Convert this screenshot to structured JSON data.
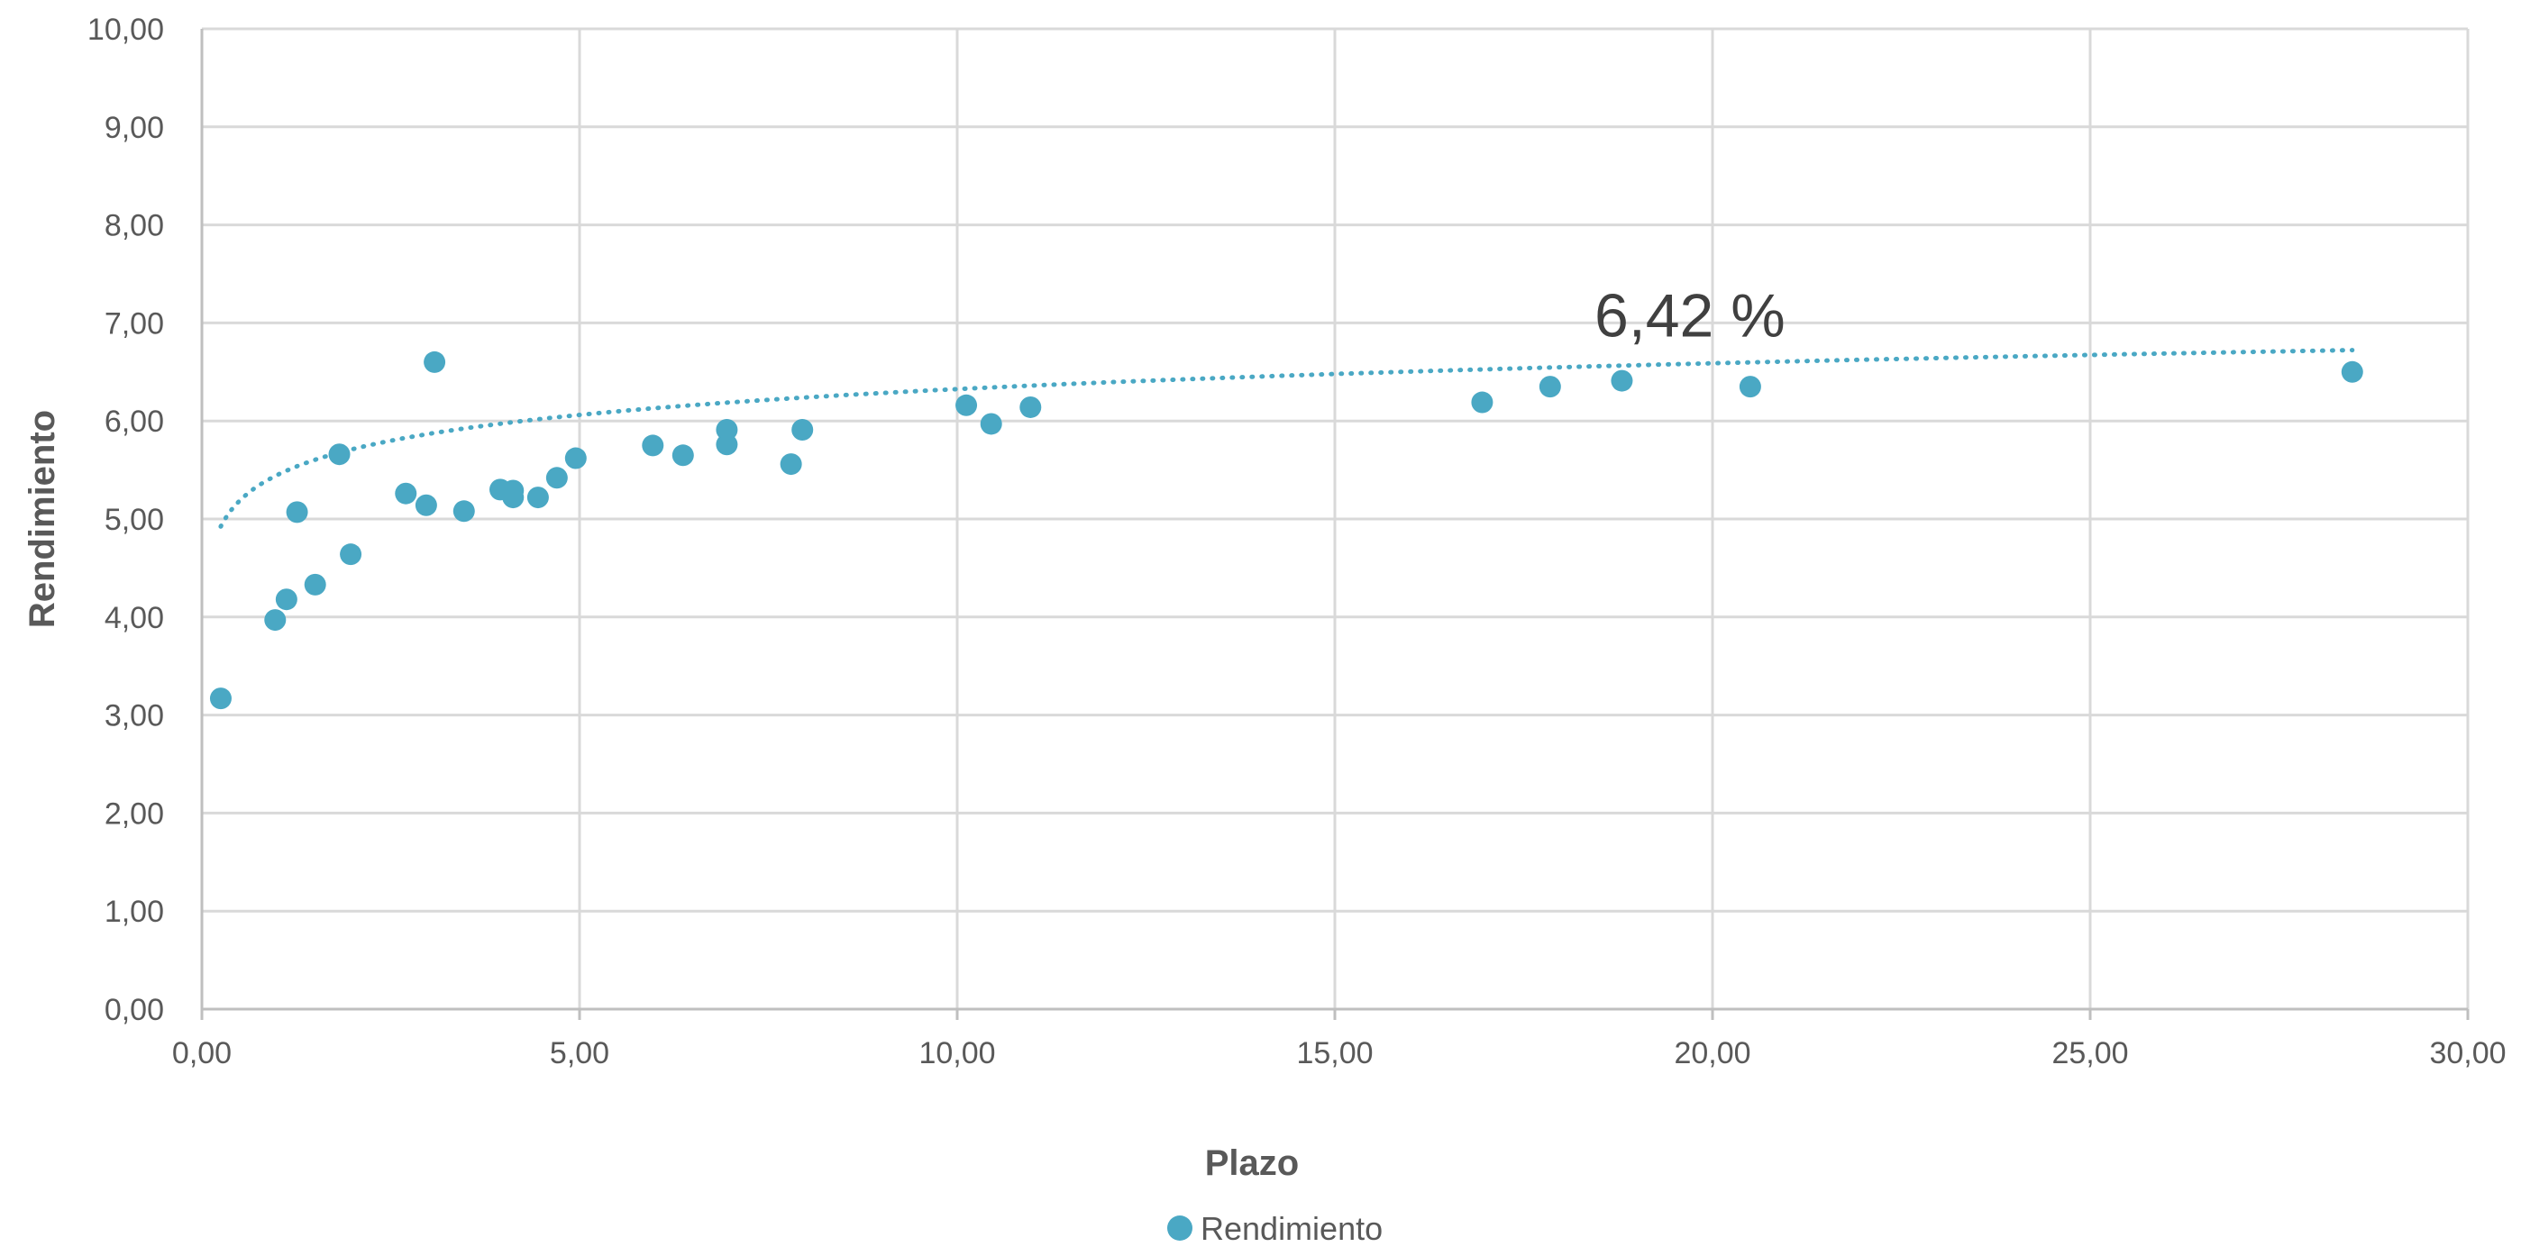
{
  "chart_data": {
    "type": "scatter",
    "title": "",
    "xlabel": "Plazo",
    "ylabel": "Rendimiento",
    "xlim": [
      0,
      30
    ],
    "ylim": [
      0,
      10
    ],
    "x_ticks": [
      "0,00",
      "5,00",
      "10,00",
      "15,00",
      "20,00",
      "25,00",
      "30,00"
    ],
    "y_ticks": [
      "0,00",
      "1,00",
      "2,00",
      "3,00",
      "4,00",
      "5,00",
      "6,00",
      "7,00",
      "8,00",
      "9,00",
      "10,00"
    ],
    "grid": true,
    "legend": {
      "position": "bottom",
      "entries": [
        "Rendimiento"
      ]
    },
    "series": [
      {
        "name": "Rendimiento",
        "color": "#4aa8c4",
        "points": [
          {
            "x": 0.25,
            "y": 3.17
          },
          {
            "x": 0.97,
            "y": 3.97
          },
          {
            "x": 1.12,
            "y": 4.18
          },
          {
            "x": 1.26,
            "y": 5.07
          },
          {
            "x": 1.5,
            "y": 4.33
          },
          {
            "x": 1.82,
            "y": 5.66
          },
          {
            "x": 1.97,
            "y": 4.64
          },
          {
            "x": 2.7,
            "y": 5.26
          },
          {
            "x": 2.97,
            "y": 5.14
          },
          {
            "x": 3.08,
            "y": 6.6
          },
          {
            "x": 3.47,
            "y": 5.08
          },
          {
            "x": 3.95,
            "y": 5.3
          },
          {
            "x": 4.12,
            "y": 5.29
          },
          {
            "x": 4.12,
            "y": 5.22
          },
          {
            "x": 4.45,
            "y": 5.22
          },
          {
            "x": 4.7,
            "y": 5.42
          },
          {
            "x": 4.95,
            "y": 5.62
          },
          {
            "x": 5.97,
            "y": 5.75
          },
          {
            "x": 6.37,
            "y": 5.65
          },
          {
            "x": 6.95,
            "y": 5.91
          },
          {
            "x": 6.95,
            "y": 5.76
          },
          {
            "x": 7.8,
            "y": 5.56
          },
          {
            "x": 7.95,
            "y": 5.91
          },
          {
            "x": 10.12,
            "y": 6.16
          },
          {
            "x": 10.45,
            "y": 5.97
          },
          {
            "x": 10.97,
            "y": 6.14
          },
          {
            "x": 16.95,
            "y": 6.19
          },
          {
            "x": 17.85,
            "y": 6.35
          },
          {
            "x": 18.8,
            "y": 6.41
          },
          {
            "x": 20.5,
            "y": 6.35
          },
          {
            "x": 28.47,
            "y": 6.5
          }
        ]
      }
    ],
    "trendline": {
      "type": "logarithmic",
      "style": "dotted",
      "color": "#4aa8c4",
      "a": 5.45,
      "b": 0.38,
      "x_range": [
        0.25,
        28.47
      ]
    },
    "annotations": [
      {
        "text": "6,42 %",
        "x": 19.7,
        "y": 6.86
      }
    ]
  }
}
